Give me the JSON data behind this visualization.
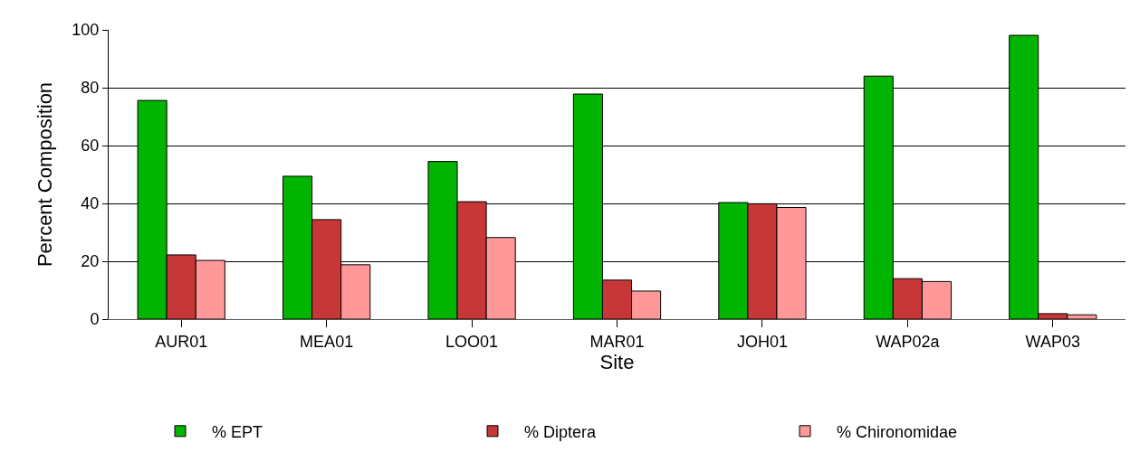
{
  "chart_data": {
    "type": "bar",
    "xlabel": "Site",
    "ylabel": "Percent Composition",
    "categories": [
      "AUR01",
      "MEA01",
      "LOO01",
      "MAR01",
      "JOH01",
      "WAP02a",
      "WAP03"
    ],
    "series": [
      {
        "name": "% EPT",
        "color": "#00b400",
        "values": [
          75.6,
          49.4,
          54.5,
          77.8,
          40.3,
          84.0,
          98.1
        ]
      },
      {
        "name": "% Diptera",
        "color": "#c83737",
        "values": [
          22.2,
          34.4,
          40.6,
          13.5,
          39.9,
          14.0,
          1.9
        ]
      },
      {
        "name": "% Chironomidae",
        "color": "#ff9999",
        "values": [
          20.3,
          18.8,
          28.2,
          9.7,
          38.6,
          13.0,
          1.5
        ]
      }
    ],
    "ylim": [
      0,
      100
    ],
    "yticks": [
      0,
      20,
      40,
      60,
      80,
      100
    ],
    "grid": "y",
    "legend": "bottom"
  }
}
